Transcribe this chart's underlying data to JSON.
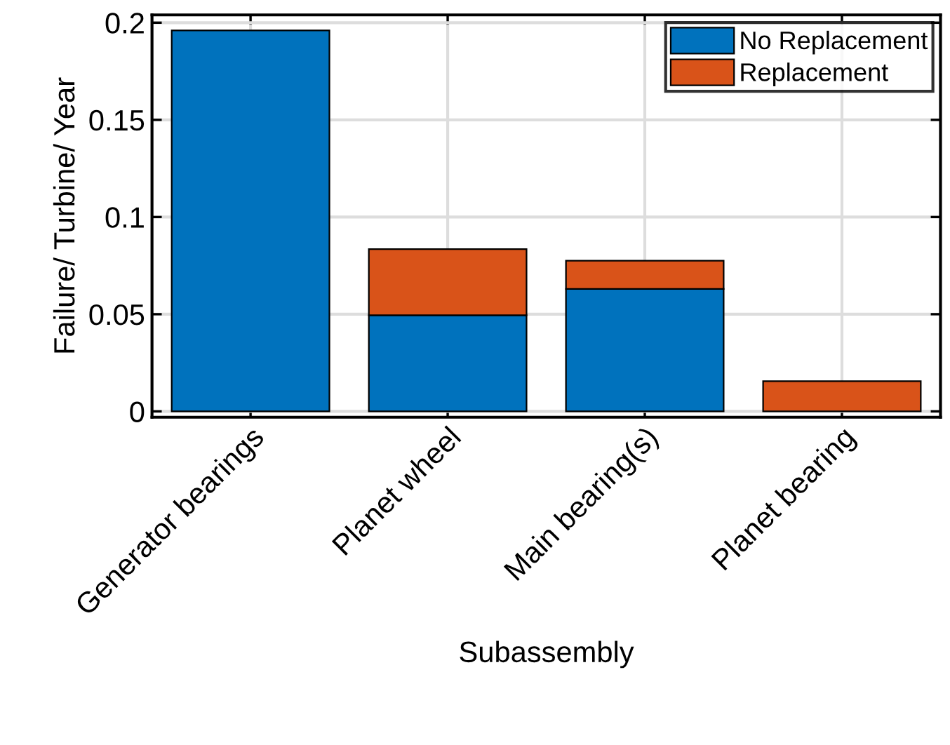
{
  "chart_data": {
    "type": "bar",
    "stacked": true,
    "xlabel": "Subassembly",
    "ylabel": "Failure/ Turbine/ Year",
    "categories": [
      "Generator bearings",
      "Planet wheel",
      "Main bearing(s)",
      "Planet bearing"
    ],
    "series": [
      {
        "name": "No Replacement",
        "color": "#0072bd",
        "values": [
          0.196,
          0.0495,
          0.063,
          null
        ]
      },
      {
        "name": "Replacement",
        "color": "#d95319",
        "values": [
          null,
          0.034,
          0.0145,
          0.0155
        ]
      }
    ],
    "ylim": [
      -0.003,
      0.204
    ],
    "yticks": [
      0,
      0.05,
      0.1,
      0.15,
      0.2
    ],
    "grid": true,
    "legend": "top right"
  }
}
